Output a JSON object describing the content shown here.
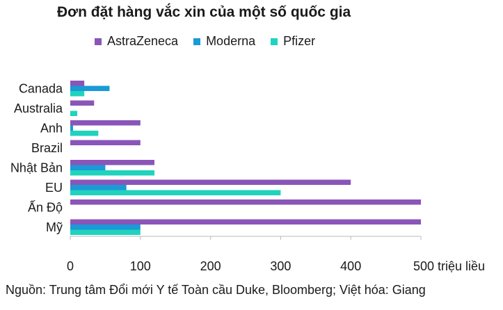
{
  "title": "Đơn đặt hàng vắc xin của một số quốc gia",
  "source": "Nguồn: Trung tâm Đổi mới Y tế Toàn cầu Duke, Bloomberg; Việt hóa: Giang",
  "chart_data": {
    "type": "bar",
    "orientation": "horizontal",
    "categories": [
      "Canada",
      "Australia",
      "Anh",
      "Brazil",
      "Nhật Bản",
      "EU",
      "Ấn Độ",
      "Mỹ"
    ],
    "series": [
      {
        "name": "AstraZeneca",
        "color": "#8a55b8",
        "values": [
          20,
          34,
          100,
          100,
          120,
          400,
          500,
          500
        ]
      },
      {
        "name": "Moderna",
        "color": "#1a9ad6",
        "values": [
          56,
          0,
          4,
          0,
          50,
          80,
          0,
          100
        ]
      },
      {
        "name": "Pfizer",
        "color": "#1fd3bd",
        "values": [
          20,
          10,
          40,
          0,
          120,
          300,
          0,
          100
        ]
      }
    ],
    "xlim": [
      0,
      500
    ],
    "xticks": [
      "0",
      "100",
      "200",
      "300",
      "400",
      "500"
    ],
    "xunit": "triệu liều",
    "grid": false,
    "legend_position": "top"
  }
}
